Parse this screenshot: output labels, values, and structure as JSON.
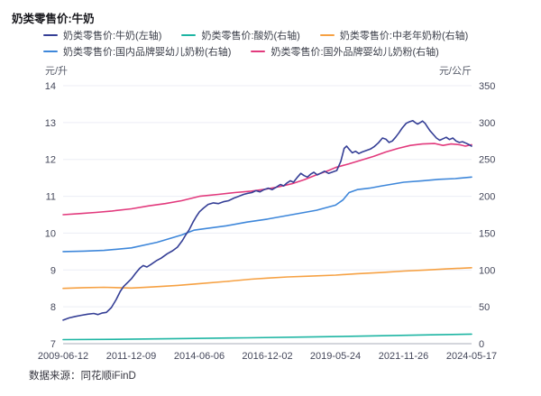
{
  "page": {
    "title": "奶类零售价:牛奶",
    "source_note": "数据来源：同花顺iFinD"
  },
  "chart_data": {
    "type": "line",
    "title": "奶类零售价:牛奶",
    "grid": "horizontal-only",
    "legend_position": "top",
    "colors": {
      "grid_line": "#ecedf5",
      "axis_line": "#a9aeba",
      "tick_text": "#44475296",
      "label_text": "#444752"
    },
    "left_axis": {
      "unit": "元/升",
      "min": 7,
      "max": 14,
      "ticks": [
        "14",
        "13",
        "12",
        "11",
        "10",
        "9",
        "8",
        "7"
      ]
    },
    "right_axis": {
      "unit": "元/公斤",
      "min": 0,
      "max": 350,
      "ticks": [
        "350",
        "300",
        "250",
        "200",
        "150",
        "100",
        "50",
        "0"
      ]
    },
    "x_axis": {
      "tick_labels": [
        "2009-06-12",
        "2011-12-09",
        "2014-06-06",
        "2016-12-02",
        "2019-05-24",
        "2021-11-26",
        "2024-05-17"
      ]
    },
    "series": [
      {
        "name": "奶类零售价:牛奶(左轴)",
        "axis": "left",
        "color": "#353f96",
        "points": [
          [
            0,
            7.64
          ],
          [
            0.015,
            7.7
          ],
          [
            0.03,
            7.74
          ],
          [
            0.045,
            7.77
          ],
          [
            0.06,
            7.8
          ],
          [
            0.075,
            7.82
          ],
          [
            0.085,
            7.79
          ],
          [
            0.095,
            7.83
          ],
          [
            0.106,
            7.85
          ],
          [
            0.118,
            7.98
          ],
          [
            0.13,
            8.2
          ],
          [
            0.14,
            8.42
          ],
          [
            0.148,
            8.55
          ],
          [
            0.158,
            8.66
          ],
          [
            0.167,
            8.76
          ],
          [
            0.178,
            8.92
          ],
          [
            0.188,
            9.05
          ],
          [
            0.196,
            9.12
          ],
          [
            0.205,
            9.08
          ],
          [
            0.215,
            9.15
          ],
          [
            0.228,
            9.25
          ],
          [
            0.24,
            9.32
          ],
          [
            0.255,
            9.44
          ],
          [
            0.268,
            9.52
          ],
          [
            0.28,
            9.62
          ],
          [
            0.292,
            9.8
          ],
          [
            0.3,
            9.95
          ],
          [
            0.308,
            10.08
          ],
          [
            0.318,
            10.3
          ],
          [
            0.326,
            10.45
          ],
          [
            0.334,
            10.58
          ],
          [
            0.344,
            10.68
          ],
          [
            0.355,
            10.78
          ],
          [
            0.368,
            10.82
          ],
          [
            0.38,
            10.8
          ],
          [
            0.392,
            10.85
          ],
          [
            0.405,
            10.88
          ],
          [
            0.418,
            10.95
          ],
          [
            0.43,
            11.0
          ],
          [
            0.442,
            11.05
          ],
          [
            0.452,
            11.08
          ],
          [
            0.462,
            11.1
          ],
          [
            0.472,
            11.15
          ],
          [
            0.482,
            11.12
          ],
          [
            0.492,
            11.18
          ],
          [
            0.502,
            11.22
          ],
          [
            0.512,
            11.18
          ],
          [
            0.522,
            11.25
          ],
          [
            0.532,
            11.32
          ],
          [
            0.54,
            11.28
          ],
          [
            0.548,
            11.36
          ],
          [
            0.556,
            11.42
          ],
          [
            0.564,
            11.38
          ],
          [
            0.574,
            11.52
          ],
          [
            0.582,
            11.62
          ],
          [
            0.59,
            11.56
          ],
          [
            0.598,
            11.52
          ],
          [
            0.606,
            11.6
          ],
          [
            0.614,
            11.65
          ],
          [
            0.622,
            11.58
          ],
          [
            0.63,
            11.62
          ],
          [
            0.64,
            11.68
          ],
          [
            0.65,
            11.62
          ],
          [
            0.66,
            11.66
          ],
          [
            0.67,
            11.7
          ],
          [
            0.68,
            11.95
          ],
          [
            0.688,
            12.3
          ],
          [
            0.694,
            12.36
          ],
          [
            0.7,
            12.28
          ],
          [
            0.708,
            12.18
          ],
          [
            0.716,
            12.22
          ],
          [
            0.724,
            12.16
          ],
          [
            0.732,
            12.2
          ],
          [
            0.742,
            12.24
          ],
          [
            0.752,
            12.28
          ],
          [
            0.762,
            12.35
          ],
          [
            0.772,
            12.45
          ],
          [
            0.782,
            12.58
          ],
          [
            0.79,
            12.55
          ],
          [
            0.798,
            12.46
          ],
          [
            0.806,
            12.5
          ],
          [
            0.814,
            12.6
          ],
          [
            0.822,
            12.72
          ],
          [
            0.83,
            12.85
          ],
          [
            0.84,
            12.98
          ],
          [
            0.848,
            13.02
          ],
          [
            0.856,
            13.05
          ],
          [
            0.862,
            13.0
          ],
          [
            0.868,
            12.96
          ],
          [
            0.874,
            13.0
          ],
          [
            0.88,
            13.04
          ],
          [
            0.886,
            12.98
          ],
          [
            0.892,
            12.88
          ],
          [
            0.898,
            12.78
          ],
          [
            0.906,
            12.68
          ],
          [
            0.914,
            12.58
          ],
          [
            0.922,
            12.52
          ],
          [
            0.93,
            12.56
          ],
          [
            0.938,
            12.6
          ],
          [
            0.946,
            12.54
          ],
          [
            0.954,
            12.58
          ],
          [
            0.962,
            12.5
          ],
          [
            0.97,
            12.46
          ],
          [
            0.978,
            12.48
          ],
          [
            0.986,
            12.44
          ],
          [
            0.994,
            12.4
          ],
          [
            1,
            12.36
          ]
        ]
      },
      {
        "name": "奶类零售价:酸奶(右轴)",
        "axis": "right",
        "color": "#1db5a3",
        "points": [
          [
            0,
            5.5
          ],
          [
            0.15,
            6
          ],
          [
            0.3,
            7
          ],
          [
            0.45,
            8
          ],
          [
            0.6,
            9
          ],
          [
            0.75,
            10.5
          ],
          [
            0.9,
            12
          ],
          [
            1,
            13
          ]
        ]
      },
      {
        "name": "奶类零售价:中老年奶粉(右轴)",
        "axis": "right",
        "color": "#f6a143",
        "points": [
          [
            0,
            75
          ],
          [
            0.05,
            76
          ],
          [
            0.1,
            76.5
          ],
          [
            0.167,
            75.5
          ],
          [
            0.22,
            77
          ],
          [
            0.28,
            79
          ],
          [
            0.334,
            81.5
          ],
          [
            0.4,
            84.5
          ],
          [
            0.46,
            87.5
          ],
          [
            0.5,
            89
          ],
          [
            0.55,
            90.5
          ],
          [
            0.6,
            91.5
          ],
          [
            0.667,
            93
          ],
          [
            0.72,
            95
          ],
          [
            0.78,
            96.5
          ],
          [
            0.834,
            98.5
          ],
          [
            0.89,
            100
          ],
          [
            0.94,
            101.5
          ],
          [
            1,
            103
          ]
        ]
      },
      {
        "name": "奶类零售价:国内品牌婴幼儿奶粉(右轴)",
        "axis": "right",
        "color": "#3e87da",
        "points": [
          [
            0,
            125
          ],
          [
            0.05,
            125.5
          ],
          [
            0.1,
            126.5
          ],
          [
            0.167,
            130
          ],
          [
            0.23,
            137.5
          ],
          [
            0.29,
            147.5
          ],
          [
            0.32,
            154
          ],
          [
            0.334,
            155
          ],
          [
            0.4,
            160
          ],
          [
            0.45,
            165
          ],
          [
            0.5,
            169
          ],
          [
            0.56,
            175
          ],
          [
            0.62,
            181
          ],
          [
            0.667,
            188
          ],
          [
            0.685,
            195
          ],
          [
            0.7,
            205
          ],
          [
            0.72,
            209
          ],
          [
            0.75,
            211
          ],
          [
            0.78,
            214
          ],
          [
            0.834,
            219
          ],
          [
            0.88,
            221
          ],
          [
            0.92,
            223
          ],
          [
            0.96,
            224
          ],
          [
            1,
            226
          ]
        ]
      },
      {
        "name": "奶类零售价:国外品牌婴幼儿奶粉(右轴)",
        "axis": "right",
        "color": "#e23a7d",
        "points": [
          [
            0,
            175
          ],
          [
            0.04,
            176.5
          ],
          [
            0.08,
            178
          ],
          [
            0.12,
            180
          ],
          [
            0.167,
            183
          ],
          [
            0.21,
            187
          ],
          [
            0.25,
            190
          ],
          [
            0.29,
            194
          ],
          [
            0.334,
            200
          ],
          [
            0.38,
            202.5
          ],
          [
            0.42,
            205
          ],
          [
            0.46,
            207
          ],
          [
            0.5,
            210
          ],
          [
            0.53,
            213
          ],
          [
            0.56,
            217
          ],
          [
            0.59,
            222.5
          ],
          [
            0.62,
            229
          ],
          [
            0.65,
            235
          ],
          [
            0.667,
            239
          ],
          [
            0.7,
            244
          ],
          [
            0.73,
            249
          ],
          [
            0.76,
            254
          ],
          [
            0.79,
            260
          ],
          [
            0.82,
            265
          ],
          [
            0.85,
            269
          ],
          [
            0.88,
            271
          ],
          [
            0.91,
            271.5
          ],
          [
            0.93,
            269
          ],
          [
            0.95,
            271
          ],
          [
            0.97,
            270
          ],
          [
            0.985,
            268
          ],
          [
            1,
            270
          ]
        ]
      }
    ]
  }
}
